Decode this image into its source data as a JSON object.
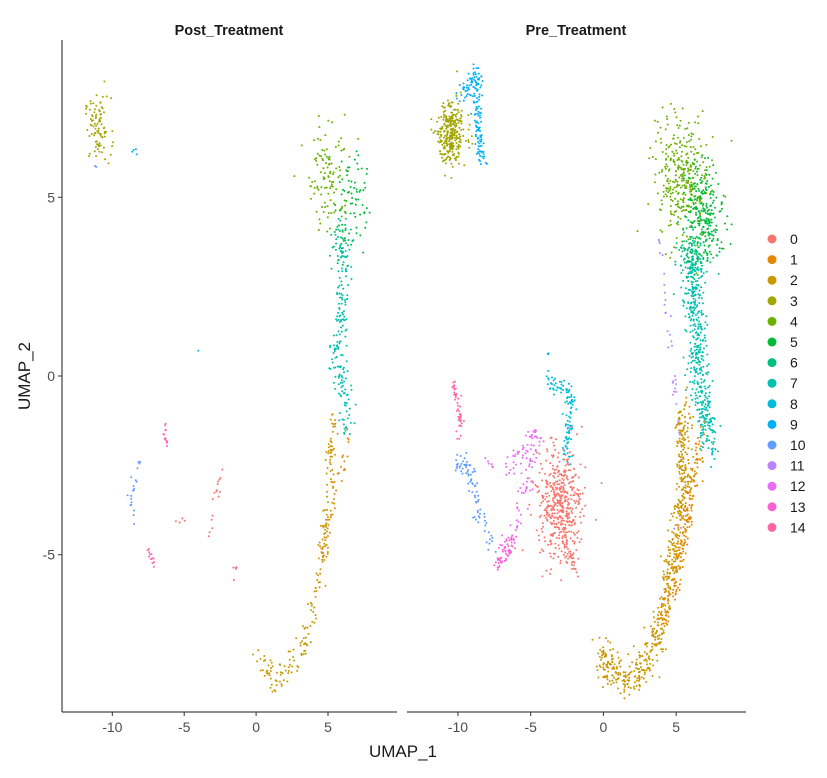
{
  "chart_data": {
    "type": "scatter",
    "xlabel": "UMAP_1",
    "ylabel": "UMAP_2",
    "xlim": [
      -13.5,
      9.8
    ],
    "ylim": [
      -9.4,
      9.4
    ],
    "x_ticks": [
      -10,
      -5,
      0,
      5
    ],
    "y_ticks": [
      -5,
      0,
      5
    ],
    "x_tick_labels": [
      "-10",
      "-5",
      "0",
      "5"
    ],
    "y_tick_labels": [
      "-5",
      "0",
      "5"
    ],
    "grid": false,
    "legend_placement": "right",
    "legend": {
      "entries": [
        {
          "label": "0",
          "color": "#F8766D"
        },
        {
          "label": "1",
          "color": "#E58700"
        },
        {
          "label": "2",
          "color": "#C99800"
        },
        {
          "label": "3",
          "color": "#A3A500"
        },
        {
          "label": "4",
          "color": "#6BB100"
        },
        {
          "label": "5",
          "color": "#00BA38"
        },
        {
          "label": "6",
          "color": "#00BF7D"
        },
        {
          "label": "7",
          "color": "#00C0AF"
        },
        {
          "label": "8",
          "color": "#00BCD8"
        },
        {
          "label": "9",
          "color": "#00B0F6"
        },
        {
          "label": "10",
          "color": "#619CFF"
        },
        {
          "label": "11",
          "color": "#B983FF"
        },
        {
          "label": "12",
          "color": "#E76BF3"
        },
        {
          "label": "13",
          "color": "#FD61D1"
        },
        {
          "label": "14",
          "color": "#FF67A4"
        }
      ]
    },
    "panels": [
      {
        "title": "Post_Treatment",
        "clusters": [
          {
            "cluster": 3,
            "count": 90,
            "shape": "blob",
            "cx": -11.0,
            "cy": 6.9,
            "rx": 0.9,
            "ry": 0.9
          },
          {
            "cluster": 9,
            "count": 4,
            "shape": "blob",
            "cx": -8.4,
            "cy": 6.3,
            "rx": 0.2,
            "ry": 0.1
          },
          {
            "cluster": 10,
            "count": 2,
            "shape": "blob",
            "cx": -11.2,
            "cy": 5.8,
            "rx": 0.1,
            "ry": 0.1
          },
          {
            "cluster": 4,
            "count": 110,
            "shape": "blob",
            "cx": 5.1,
            "cy": 5.7,
            "rx": 1.5,
            "ry": 1.6
          },
          {
            "cluster": 5,
            "count": 75,
            "shape": "blob",
            "cx": 6.6,
            "cy": 4.9,
            "rx": 1.1,
            "ry": 1.5
          },
          {
            "cluster": 6,
            "count": 40,
            "shape": "blob",
            "cx": 5.8,
            "cy": 3.7,
            "rx": 0.8,
            "ry": 0.7
          },
          {
            "cluster": 7,
            "count": 170,
            "shape": "path",
            "path": [
              [
                6.0,
                3.5
              ],
              [
                6.0,
                2.0
              ],
              [
                5.6,
                0.5
              ],
              [
                6.3,
                -0.8
              ],
              [
                6.0,
                -1.6
              ]
            ],
            "spread": 0.55
          },
          {
            "cluster": 2,
            "count": 200,
            "shape": "path",
            "path": [
              [
                5.3,
                -1.0
              ],
              [
                5.2,
                -3.0
              ],
              [
                4.6,
                -5.0
              ],
              [
                3.9,
                -6.8
              ],
              [
                3.0,
                -7.8
              ],
              [
                1.5,
                -8.5
              ],
              [
                0.0,
                -8.0
              ]
            ],
            "spread": 0.45
          },
          {
            "cluster": 1,
            "count": 35,
            "shape": "path",
            "path": [
              [
                6.4,
                -1.6
              ],
              [
                5.4,
                -3.5
              ],
              [
                4.5,
                -5.2
              ]
            ],
            "spread": 0.35
          },
          {
            "cluster": 10,
            "count": 20,
            "shape": "path",
            "path": [
              [
                -8.0,
                -2.4
              ],
              [
                -8.8,
                -3.4
              ],
              [
                -8.3,
                -4.2
              ]
            ],
            "spread": 0.2
          },
          {
            "cluster": 14,
            "count": 14,
            "shape": "path",
            "path": [
              [
                -6.4,
                -1.2
              ],
              [
                -6.2,
                -2.0
              ]
            ],
            "spread": 0.15
          },
          {
            "cluster": 14,
            "count": 12,
            "shape": "path",
            "path": [
              [
                -7.5,
                -4.9
              ],
              [
                -7.0,
                -5.2
              ]
            ],
            "spread": 0.15
          },
          {
            "cluster": 0,
            "count": 16,
            "shape": "path",
            "path": [
              [
                -2.5,
                -2.6
              ],
              [
                -3.0,
                -3.8
              ],
              [
                -3.3,
                -4.4
              ]
            ],
            "spread": 0.3
          },
          {
            "cluster": 14,
            "count": 5,
            "shape": "blob",
            "cx": -1.5,
            "cy": -5.5,
            "rx": 0.12,
            "ry": 0.25
          },
          {
            "cluster": 8,
            "count": 1,
            "shape": "blob",
            "cx": -4.0,
            "cy": 0.7,
            "rx": 0.05,
            "ry": 0.05
          },
          {
            "cluster": 0,
            "count": 4,
            "shape": "blob",
            "cx": -5.3,
            "cy": -4.0,
            "rx": 0.7,
            "ry": 0.3
          }
        ]
      },
      {
        "title": "Pre_Treatment",
        "clusters": [
          {
            "cluster": 3,
            "count": 300,
            "shape": "blob",
            "cx": -10.5,
            "cy": 6.8,
            "rx": 1.0,
            "ry": 0.9
          },
          {
            "cluster": 9,
            "count": 150,
            "shape": "path",
            "path": [
              [
                -9.8,
                7.8
              ],
              [
                -8.6,
                8.4
              ],
              [
                -8.7,
                7.0
              ],
              [
                -8.3,
                6.0
              ]
            ],
            "spread": 0.35
          },
          {
            "cluster": 4,
            "count": 330,
            "shape": "blob",
            "cx": 5.4,
            "cy": 5.5,
            "rx": 1.8,
            "ry": 1.7
          },
          {
            "cluster": 5,
            "count": 230,
            "shape": "blob",
            "cx": 7.0,
            "cy": 4.5,
            "rx": 1.3,
            "ry": 1.4
          },
          {
            "cluster": 6,
            "count": 120,
            "shape": "blob",
            "cx": 6.2,
            "cy": 3.4,
            "rx": 1.2,
            "ry": 0.8
          },
          {
            "cluster": 11,
            "count": 40,
            "shape": "path",
            "path": [
              [
                3.8,
                3.8
              ],
              [
                4.1,
                3.0
              ],
              [
                5.7,
                -3.7
              ],
              [
                5.0,
                -4.3
              ]
            ],
            "spread": 0.25
          },
          {
            "cluster": 7,
            "count": 420,
            "shape": "path",
            "path": [
              [
                6.1,
                3.0
              ],
              [
                6.4,
                1.2
              ],
              [
                6.5,
                0.0
              ],
              [
                7.0,
                -1.2
              ],
              [
                7.3,
                -2.0
              ]
            ],
            "spread": 0.75
          },
          {
            "cluster": 2,
            "count": 600,
            "shape": "path",
            "path": [
              [
                5.6,
                -0.8
              ],
              [
                5.5,
                -3.0
              ],
              [
                4.8,
                -5.0
              ],
              [
                4.1,
                -6.7
              ],
              [
                3.2,
                -7.9
              ],
              [
                1.8,
                -8.5
              ],
              [
                0.3,
                -8.2
              ],
              [
                -0.3,
                -7.8
              ]
            ],
            "spread": 0.6
          },
          {
            "cluster": 1,
            "count": 180,
            "shape": "path",
            "path": [
              [
                6.8,
                -1.6
              ],
              [
                6.0,
                -3.5
              ],
              [
                5.2,
                -5.4
              ],
              [
                4.0,
                -6.8
              ]
            ],
            "spread": 0.45
          },
          {
            "cluster": 8,
            "count": 110,
            "shape": "path",
            "path": [
              [
                -3.7,
                -0.2
              ],
              [
                -2.2,
                -0.5
              ],
              [
                -2.4,
                -1.6
              ],
              [
                -2.6,
                -2.3
              ]
            ],
            "spread": 0.35
          },
          {
            "cluster": 0,
            "count": 450,
            "shape": "blob",
            "cx": -3.0,
            "cy": -3.6,
            "rx": 1.5,
            "ry": 1.5
          },
          {
            "cluster": 0,
            "count": 40,
            "shape": "path",
            "path": [
              [
                -2.8,
                -4.5
              ],
              [
                -1.8,
                -5.5
              ]
            ],
            "spread": 0.3
          },
          {
            "cluster": 12,
            "count": 110,
            "shape": "path",
            "path": [
              [
                -6.8,
                -2.6
              ],
              [
                -5.2,
                -2.0
              ],
              [
                -4.5,
                -1.7
              ],
              [
                -6.2,
                -4.6
              ],
              [
                -7.0,
                -5.0
              ]
            ],
            "spread": 0.45
          },
          {
            "cluster": 13,
            "count": 50,
            "shape": "path",
            "path": [
              [
                -6.0,
                -4.5
              ],
              [
                -6.8,
                -5.0
              ],
              [
                -7.3,
                -5.3
              ]
            ],
            "spread": 0.3
          },
          {
            "cluster": 10,
            "count": 80,
            "shape": "path",
            "path": [
              [
                -10.2,
                -2.4
              ],
              [
                -9.2,
                -2.5
              ],
              [
                -8.7,
                -3.6
              ],
              [
                -7.6,
                -4.8
              ]
            ],
            "spread": 0.35
          },
          {
            "cluster": 14,
            "count": 45,
            "shape": "path",
            "path": [
              [
                -10.3,
                -0.2
              ],
              [
                -9.8,
                -1.2
              ],
              [
                -10.0,
                -1.7
              ]
            ],
            "spread": 0.2
          },
          {
            "cluster": 12,
            "count": 6,
            "shape": "blob",
            "cx": -7.8,
            "cy": -2.6,
            "rx": 0.5,
            "ry": 0.3
          },
          {
            "cluster": 8,
            "count": 3,
            "shape": "blob",
            "cx": -3.8,
            "cy": 0.6,
            "rx": 0.08,
            "ry": 0.15
          }
        ]
      }
    ]
  }
}
